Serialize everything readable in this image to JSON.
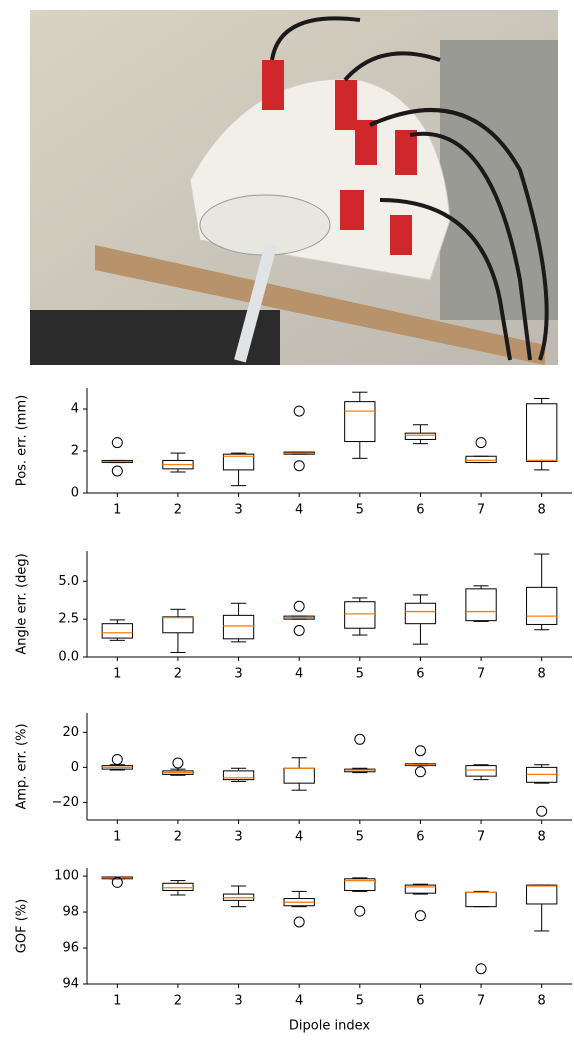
{
  "chart_data": [
    {
      "type": "box",
      "ylabel": "Pos. err. (mm)",
      "categories": [
        "1",
        "2",
        "3",
        "4",
        "5",
        "6",
        "7",
        "8"
      ],
      "ylim": [
        0,
        5.0
      ],
      "yticks": [
        0,
        2,
        4
      ],
      "box_color": "#000000",
      "median_color": "#ff7f0e",
      "boxes": [
        {
          "whislo": 1.45,
          "q1": 1.45,
          "med": 1.5,
          "q3": 1.55,
          "whishi": 1.55,
          "fliers": [
            2.4,
            1.05
          ]
        },
        {
          "whislo": 1.0,
          "q1": 1.15,
          "med": 1.35,
          "q3": 1.55,
          "whishi": 1.9,
          "fliers": []
        },
        {
          "whislo": 0.35,
          "q1": 1.1,
          "med": 1.75,
          "q3": 1.85,
          "whishi": 1.9,
          "fliers": []
        },
        {
          "whislo": 1.85,
          "q1": 1.85,
          "med": 1.9,
          "q3": 1.95,
          "whishi": 1.95,
          "fliers": [
            3.9,
            1.3
          ]
        },
        {
          "whislo": 1.65,
          "q1": 2.45,
          "med": 3.9,
          "q3": 4.35,
          "whishi": 4.8,
          "fliers": []
        },
        {
          "whislo": 2.35,
          "q1": 2.55,
          "med": 2.75,
          "q3": 2.85,
          "whishi": 3.25,
          "fliers": []
        },
        {
          "whislo": 1.45,
          "q1": 1.45,
          "med": 1.55,
          "q3": 1.75,
          "whishi": 1.75,
          "fliers": [
            2.4
          ]
        },
        {
          "whislo": 1.1,
          "q1": 1.5,
          "med": 1.55,
          "q3": 4.25,
          "whishi": 4.5,
          "fliers": []
        }
      ]
    },
    {
      "type": "box",
      "ylabel": "Angle err. (deg)",
      "categories": [
        "1",
        "2",
        "3",
        "4",
        "5",
        "6",
        "7",
        "8"
      ],
      "ylim": [
        0,
        7.0
      ],
      "yticks": [
        {
          "value": 0,
          "label": "0.0"
        },
        2.5,
        {
          "value": 5,
          "label": "5.0"
        }
      ],
      "box_color": "#000000",
      "median_color": "#ff7f0e",
      "boxes": [
        {
          "whislo": 1.1,
          "q1": 1.25,
          "med": 1.6,
          "q3": 2.2,
          "whishi": 2.45,
          "fliers": []
        },
        {
          "whislo": 0.3,
          "q1": 1.6,
          "med": 2.6,
          "q3": 2.65,
          "whishi": 3.15,
          "fliers": []
        },
        {
          "whislo": 1.0,
          "q1": 1.2,
          "med": 2.05,
          "q3": 2.75,
          "whishi": 3.55,
          "fliers": []
        },
        {
          "whislo": 2.5,
          "q1": 2.5,
          "med": 2.6,
          "q3": 2.7,
          "whishi": 2.7,
          "fliers": [
            3.35,
            1.75
          ]
        },
        {
          "whislo": 1.45,
          "q1": 1.9,
          "med": 2.85,
          "q3": 3.65,
          "whishi": 3.9,
          "fliers": []
        },
        {
          "whislo": 0.85,
          "q1": 2.2,
          "med": 3.0,
          "q3": 3.55,
          "whishi": 4.1,
          "fliers": []
        },
        {
          "whislo": 2.35,
          "q1": 2.4,
          "med": 3.0,
          "q3": 4.5,
          "whishi": 4.7,
          "fliers": []
        },
        {
          "whislo": 1.8,
          "q1": 2.15,
          "med": 2.7,
          "q3": 4.6,
          "whishi": 6.8,
          "fliers": []
        }
      ]
    },
    {
      "type": "box",
      "ylabel": "Amp. err. (%)",
      "categories": [
        "1",
        "2",
        "3",
        "4",
        "5",
        "6",
        "7",
        "8"
      ],
      "ylim": [
        -30,
        31
      ],
      "yticks": [
        {
          "value": -20,
          "label": "−20"
        },
        0,
        20
      ],
      "box_color": "#000000",
      "median_color": "#ff7f0e",
      "boxes": [
        {
          "whislo": -1.5,
          "q1": -1,
          "med": 0,
          "q3": 1,
          "whishi": 1.5,
          "fliers": [
            4.5
          ]
        },
        {
          "whislo": -4.5,
          "q1": -4,
          "med": -3,
          "q3": -2,
          "whishi": -1,
          "fliers": [
            2.5
          ]
        },
        {
          "whislo": -8,
          "q1": -7,
          "med": -6,
          "q3": -2,
          "whishi": -0.5,
          "fliers": []
        },
        {
          "whislo": -13,
          "q1": -9,
          "med": -0.5,
          "q3": -0.5,
          "whishi": 5.5,
          "fliers": []
        },
        {
          "whislo": -3,
          "q1": -2.5,
          "med": -1.5,
          "q3": -1,
          "whishi": -0.5,
          "fliers": [
            16
          ]
        },
        {
          "whislo": 1,
          "q1": 1,
          "med": 1.5,
          "q3": 2,
          "whishi": 2,
          "fliers": [
            9.5,
            -2.5
          ]
        },
        {
          "whislo": -7,
          "q1": -5,
          "med": -1.5,
          "q3": 1,
          "whishi": 1.5,
          "fliers": []
        },
        {
          "whislo": -9,
          "q1": -8.5,
          "med": -4,
          "q3": 0,
          "whishi": 1.5,
          "fliers": [
            -25
          ]
        }
      ]
    },
    {
      "type": "box",
      "ylabel": "GOF (%)",
      "xlabel": "Dipole index",
      "categories": [
        "1",
        "2",
        "3",
        "4",
        "5",
        "6",
        "7",
        "8"
      ],
      "ylim": [
        94,
        100.45
      ],
      "yticks": [
        94,
        96,
        98,
        100
      ],
      "box_color": "#000000",
      "median_color": "#ff7f0e",
      "boxes": [
        {
          "whislo": 99.85,
          "q1": 99.85,
          "med": 99.9,
          "q3": 99.95,
          "whishi": 99.95,
          "fliers": [
            99.65
          ]
        },
        {
          "whislo": 98.95,
          "q1": 99.2,
          "med": 99.35,
          "q3": 99.6,
          "whishi": 99.75,
          "fliers": []
        },
        {
          "whislo": 98.3,
          "q1": 98.65,
          "med": 98.8,
          "q3": 99.0,
          "whishi": 99.45,
          "fliers": []
        },
        {
          "whislo": 98.3,
          "q1": 98.35,
          "med": 98.55,
          "q3": 98.75,
          "whishi": 99.15,
          "fliers": [
            97.45
          ]
        },
        {
          "whislo": 99.15,
          "q1": 99.2,
          "med": 99.75,
          "q3": 99.85,
          "whishi": 99.9,
          "fliers": [
            98.05
          ]
        },
        {
          "whislo": 99.0,
          "q1": 99.05,
          "med": 99.4,
          "q3": 99.5,
          "whishi": 99.55,
          "fliers": [
            97.8
          ]
        },
        {
          "whislo": 98.3,
          "q1": 98.3,
          "med": 99.1,
          "q3": 99.1,
          "whishi": 99.15,
          "fliers": [
            94.85
          ]
        },
        {
          "whislo": 96.95,
          "q1": 98.45,
          "med": 99.45,
          "q3": 99.5,
          "whishi": 99.5,
          "fliers": []
        }
      ]
    }
  ]
}
